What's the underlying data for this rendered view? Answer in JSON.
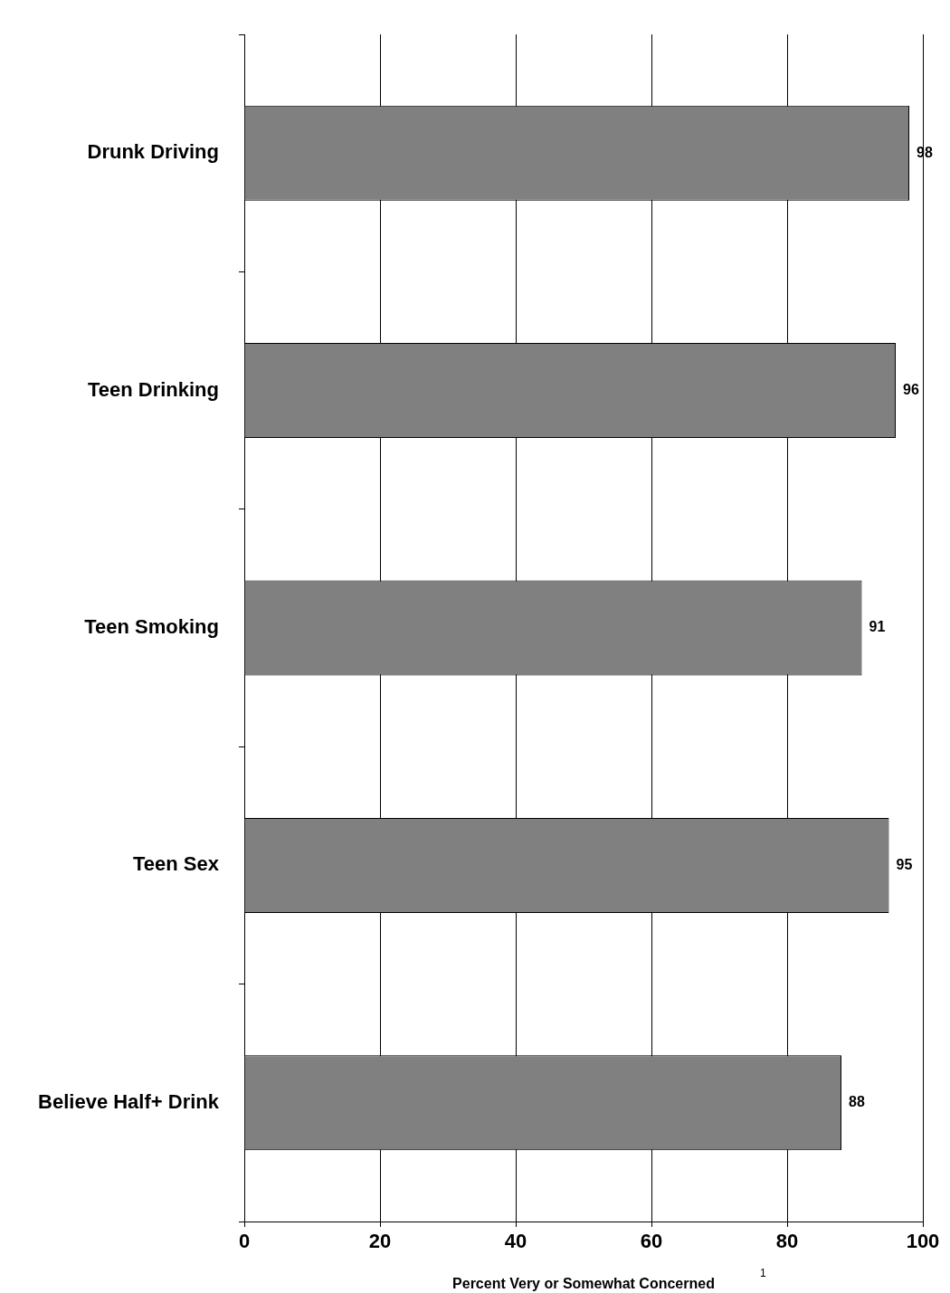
{
  "chart_data": {
    "type": "bar",
    "orientation": "horizontal",
    "xlabel": "Percent Very or Somewhat Concerned",
    "annotations": [
      "1"
    ],
    "categories": [
      "Drunk Driving",
      "Teen Drinking",
      "Teen Smoking",
      "Teen Sex",
      "Believe Half+ Drink"
    ],
    "values": [
      98,
      96,
      91,
      95,
      88
    ],
    "color": "#808080",
    "xlim": [
      0,
      100
    ],
    "xticks": [
      0,
      20,
      40,
      60,
      80,
      100
    ],
    "grid": "x",
    "data_labels": true,
    "legend": false
  }
}
